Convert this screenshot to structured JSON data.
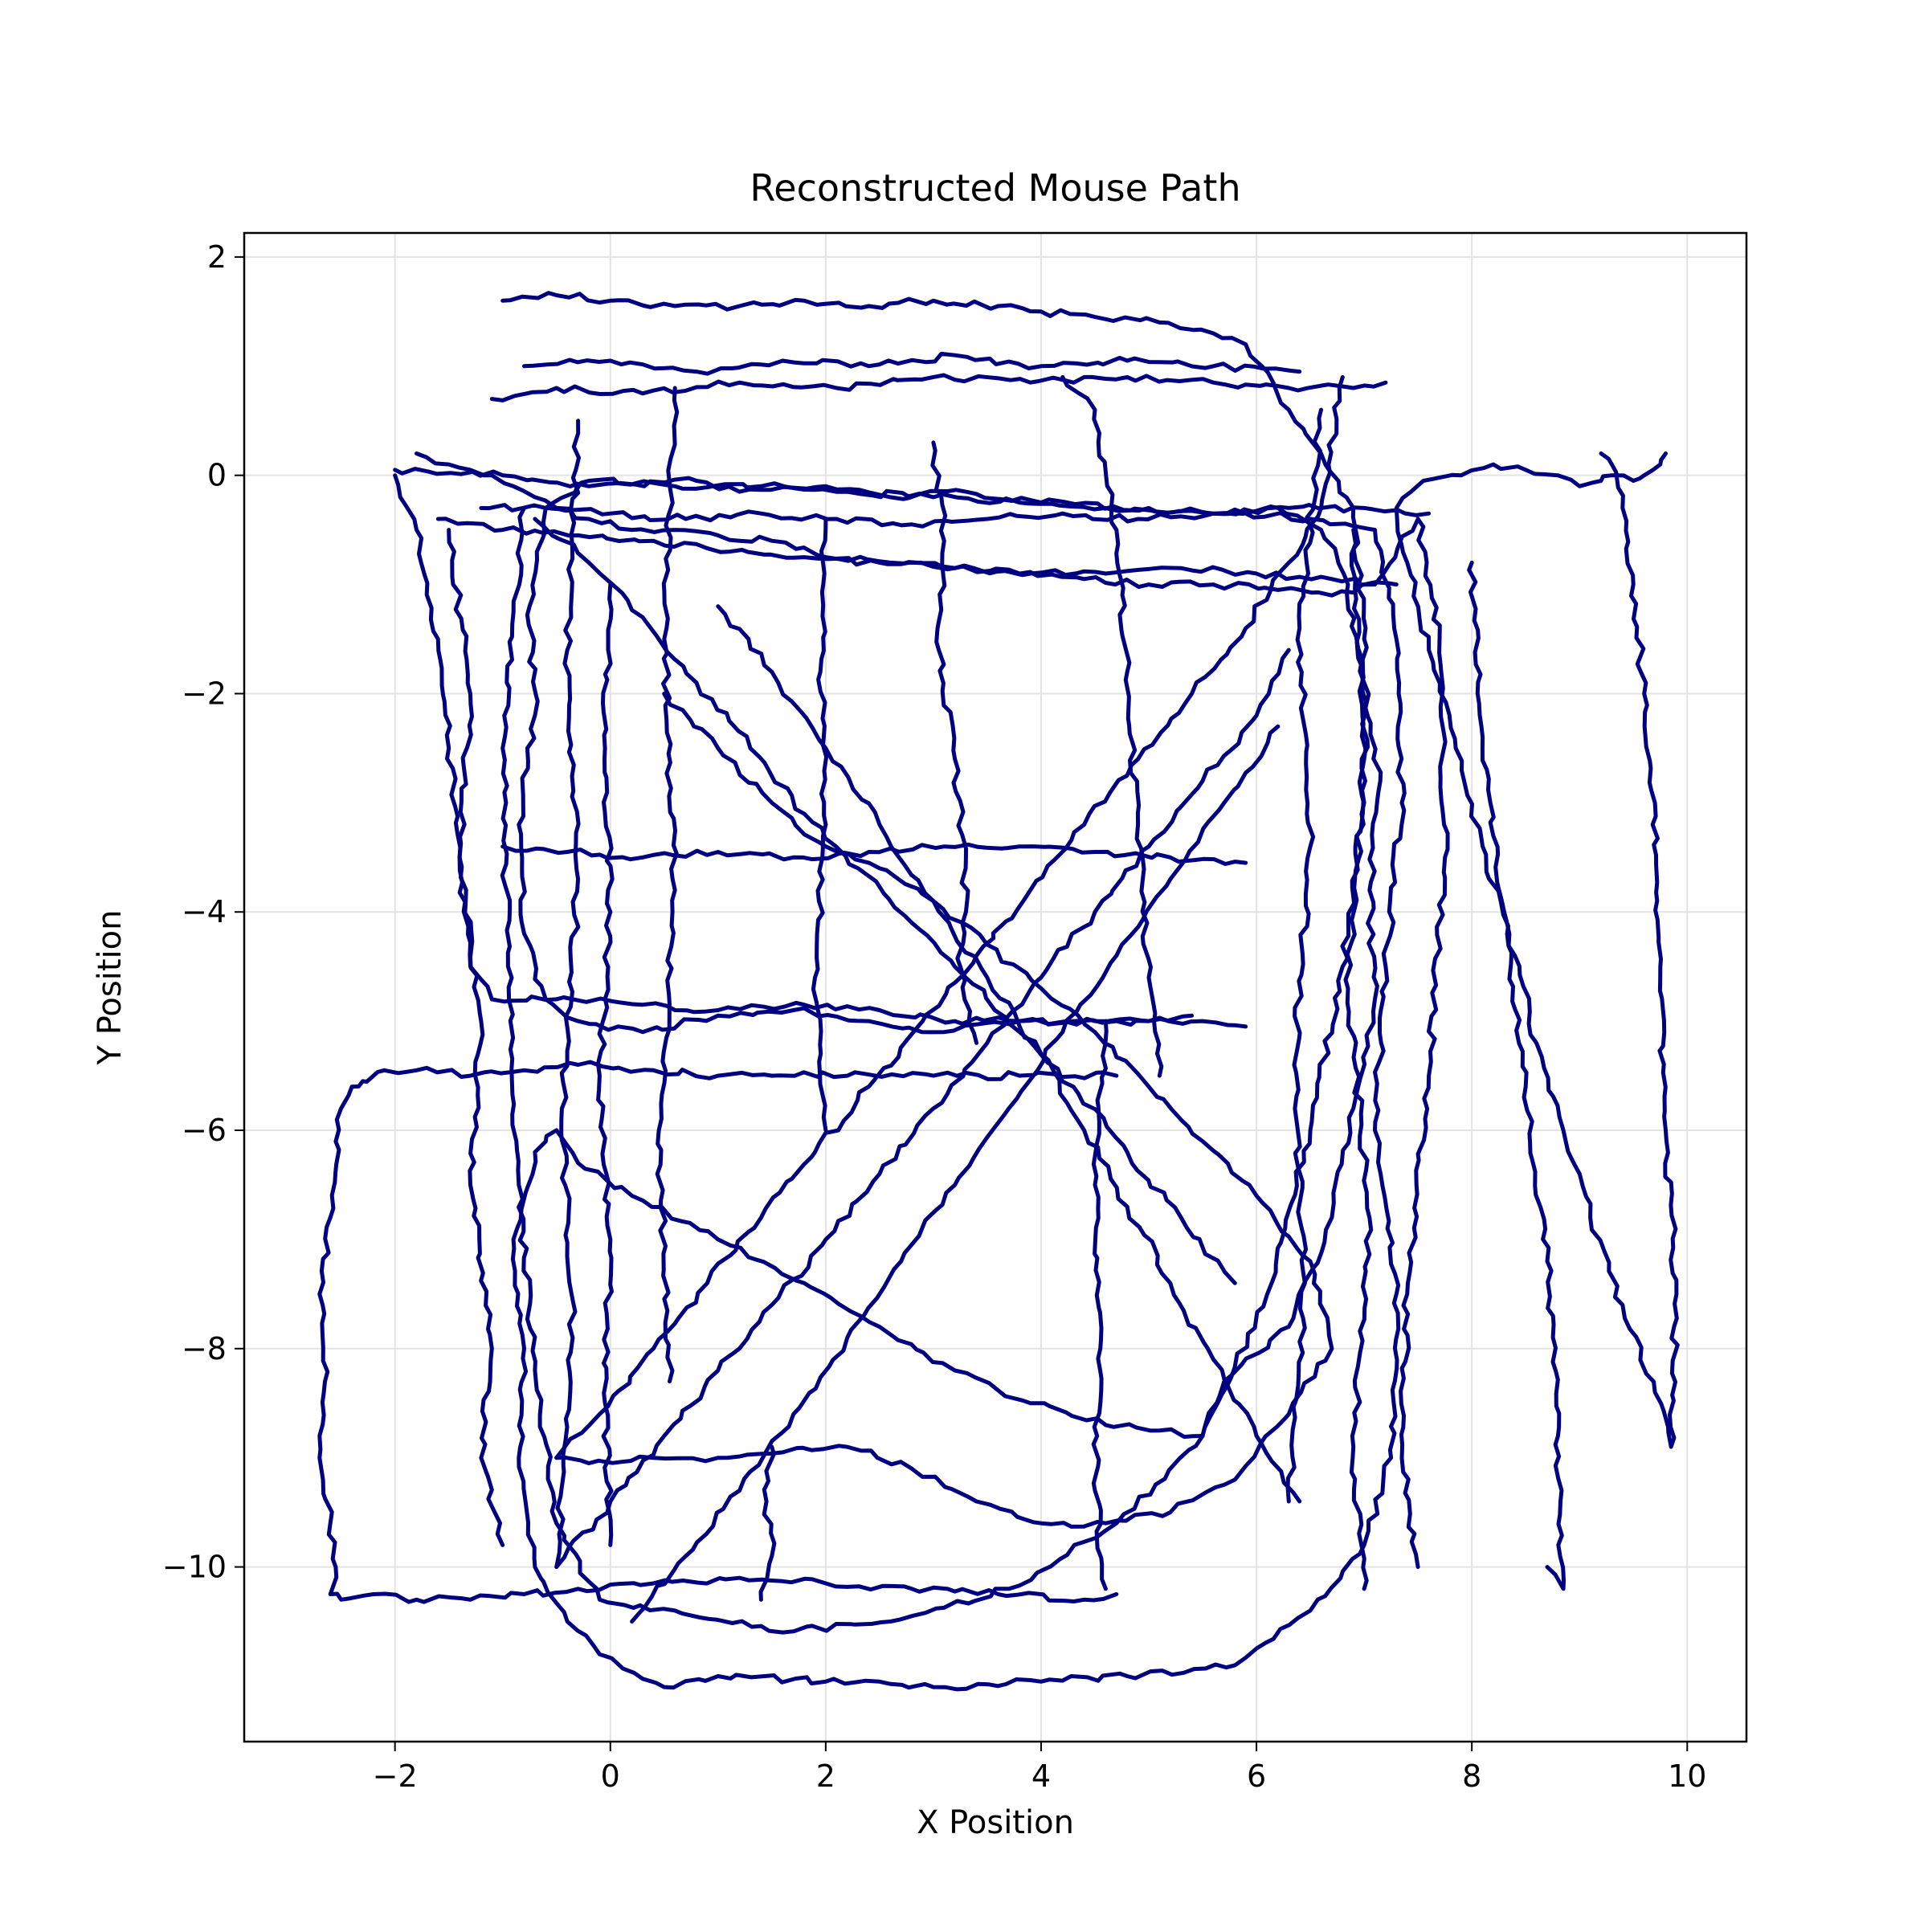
{
  "chart_data": {
    "type": "line",
    "title": "Reconstructed Mouse Path",
    "xlabel": "X Position",
    "ylabel": "Y Position",
    "xlim": [
      -3.4,
      10.55
    ],
    "ylim": [
      -11.6,
      2.22
    ],
    "xticks": [
      -2,
      0,
      2,
      4,
      6,
      8,
      10
    ],
    "yticks": [
      -10,
      -8,
      -6,
      -4,
      -2,
      0,
      2
    ],
    "xtick_labels": [
      "−2",
      "0",
      "2",
      "4",
      "6",
      "8",
      "10"
    ],
    "ytick_labels": [
      "−10",
      "−8",
      "−6",
      "−4",
      "−2",
      "0",
      "2"
    ],
    "grid": true,
    "line_color": "#000080",
    "series": [
      {
        "x": [
          -2.0,
          -1.0,
          -0.2,
          0.8,
          1.2,
          2.0,
          2.6,
          3.3,
          4.0,
          5.0,
          5.9,
          6.5,
          7.1,
          7.3,
          7.35,
          7.2,
          7.1,
          7.3,
          7.25,
          7.0,
          6.5,
          5.8,
          4.8,
          4.0,
          3.0,
          2.0,
          1.0,
          0.5,
          -0.1,
          -0.4,
          -0.7,
          -0.85,
          -0.8,
          -0.9,
          -0.7,
          -0.5,
          -0.3,
          0.2,
          1.0,
          1.8,
          2.5,
          3.2,
          3.9,
          4.6,
          5.1,
          5.5
        ],
        "y": [
          0.05,
          0.0,
          -0.1,
          -0.05,
          -0.15,
          -0.1,
          -0.2,
          -0.15,
          -0.25,
          -0.3,
          -0.35,
          -0.4,
          -0.5,
          -1.5,
          -3.0,
          -4.5,
          -6.0,
          -7.5,
          -9.0,
          -9.8,
          -10.4,
          -10.9,
          -11.0,
          -11.05,
          -11.1,
          -11.05,
          -11.0,
          -11.1,
          -10.8,
          -10.5,
          -10.0,
          -9.0,
          -8.0,
          -7.0,
          -6.2,
          -6.0,
          -6.3,
          -6.6,
          -7.0,
          -7.4,
          -7.8,
          -8.2,
          -8.5,
          -8.7,
          -8.75,
          -8.8
        ]
      },
      {
        "x": [
          5.5,
          5.7,
          6.3,
          6.7,
          6.9,
          7.1,
          7.05,
          7.15,
          7.0,
          6.85,
          6.6,
          6.2,
          5.6,
          4.6,
          3.8,
          3.0,
          2.2,
          1.4,
          0.6,
          -0.2,
          -0.6,
          -0.75,
          -0.7,
          -0.85,
          -0.8,
          -0.6,
          -0.3,
          0.3,
          1.0,
          1.7,
          2.4,
          3.1,
          3.8,
          4.5,
          5.0,
          5.5,
          5.9
        ],
        "y": [
          -8.8,
          -8.3,
          -7.8,
          -6.8,
          -5.8,
          -4.8,
          -3.8,
          -2.8,
          -1.9,
          -1.0,
          -0.5,
          -0.3,
          -0.35,
          -0.3,
          -0.25,
          -0.2,
          -0.15,
          -0.1,
          -0.1,
          -0.05,
          -0.3,
          -1.2,
          -2.2,
          -3.2,
          -4.2,
          -4.8,
          -5.0,
          -5.1,
          -4.95,
          -4.9,
          -5.0,
          -5.1,
          -5.0,
          -5.0,
          -5.0,
          -5.0,
          -5.05
        ]
      },
      {
        "x": [
          -2.0,
          -1.8,
          -1.6,
          -1.5,
          -1.4,
          -1.3,
          -1.1,
          -0.5,
          0.3,
          1.0,
          1.8,
          2.5,
          3.2,
          3.8,
          4.3,
          4.7,
          5.0,
          5.4
        ],
        "y": [
          0.0,
          -0.5,
          -1.5,
          -2.5,
          -3.5,
          -4.5,
          -4.8,
          -4.8,
          -4.85,
          -4.9,
          -4.85,
          -4.9,
          -5.0,
          -5.0,
          -5.0,
          -5.0,
          -5.0,
          -4.95
        ]
      },
      {
        "x": [
          -1.0,
          -0.5,
          0.0,
          0.6,
          1.2,
          1.8,
          2.4,
          3.0,
          3.6,
          4.0,
          4.5,
          5.1,
          5.6,
          5.9,
          6.05,
          6.3,
          6.6,
          6.9,
          7.0,
          7.0,
          6.8,
          6.5,
          6.1,
          5.5,
          4.7,
          3.7,
          2.6,
          1.6,
          0.6,
          -0.1,
          -0.5,
          -0.7,
          -0.85,
          -0.95,
          -1.0,
          -0.8
        ],
        "y": [
          1.6,
          1.65,
          1.6,
          1.55,
          1.55,
          1.6,
          1.55,
          1.6,
          1.55,
          1.5,
          1.45,
          1.4,
          1.3,
          1.2,
          1.0,
          0.6,
          0.2,
          -0.3,
          -1.5,
          -3.0,
          -4.5,
          -6.0,
          -7.5,
          -8.8,
          -9.6,
          -10.2,
          -10.5,
          -10.6,
          -10.4,
          -10.3,
          -9.6,
          -8.2,
          -6.5,
          -4.5,
          -2.5,
          -0.3
        ]
      },
      {
        "x": [
          -1.8,
          -1.5,
          -1.3,
          -1.1,
          -0.9,
          -0.7,
          -0.5,
          -0.2,
          0.2,
          0.6,
          1.0,
          1.5,
          2.0,
          2.6,
          3.2,
          3.8,
          4.4,
          5.0,
          5.6,
          6.2,
          6.7,
          7.1,
          7.5,
          7.7,
          7.75,
          7.6,
          7.4,
          7.35,
          7.5
        ],
        "y": [
          0.2,
          0.1,
          0.05,
          0.0,
          -0.1,
          -0.2,
          -0.3,
          -0.4,
          -0.5,
          -0.5,
          -0.55,
          -0.6,
          -0.75,
          -0.8,
          -0.85,
          -0.9,
          -0.95,
          -1.0,
          -1.0,
          -1.05,
          -1.1,
          -1.0,
          -0.4,
          -1.5,
          -3.5,
          -5.5,
          -7.5,
          -9.0,
          -10.0
        ]
      },
      {
        "x": [
          9.8,
          9.75,
          9.6,
          9.5,
          9.3,
          9.2,
          9.0,
          8.8,
          8.5,
          8.2,
          7.9,
          7.55,
          7.3,
          7.4,
          7.6,
          7.85,
          8.1,
          8.4,
          8.6,
          8.85,
          9.1,
          9.4,
          9.7,
          9.85,
          9.9,
          9.8,
          9.75,
          9.7,
          9.6,
          9.5,
          9.4,
          9.3,
          9.2
        ],
        "y": [
          0.2,
          0.1,
          0.0,
          -0.05,
          0.0,
          -0.05,
          -0.1,
          0.0,
          0.05,
          0.1,
          0.0,
          -0.05,
          -0.3,
          -0.8,
          -1.6,
          -2.5,
          -3.4,
          -4.4,
          -5.2,
          -6.0,
          -6.8,
          -7.6,
          -8.4,
          -8.9,
          -7.5,
          -6.0,
          -4.5,
          -3.0,
          -2.0,
          -1.0,
          -0.3,
          0.1,
          0.2
        ]
      },
      {
        "x": [
          -2.6,
          -2.5,
          -2.4,
          -2.3,
          -2.2,
          -2.1,
          -1.8,
          -1.3,
          -0.8,
          -0.3,
          0.4,
          1.0,
          1.5,
          2.2,
          3.0,
          3.8,
          4.7
        ],
        "y": [
          -6.8,
          -5.8,
          -5.6,
          -5.55,
          -5.5,
          -5.45,
          -5.45,
          -5.5,
          -5.45,
          -5.4,
          -5.45,
          -5.5,
          -5.5,
          -5.5,
          -5.5,
          -5.5,
          -5.5
        ]
      },
      {
        "x": [
          -2.6,
          -2.7,
          -2.65,
          -2.7,
          -2.6,
          -2.55,
          -2.6,
          -2.5,
          -2.2,
          -1.8,
          -1.3,
          -0.8,
          -0.3,
          0.4,
          1.2,
          2.0,
          2.8,
          3.6,
          4.4,
          4.7
        ],
        "y": [
          -6.8,
          -7.5,
          -8.3,
          -9.0,
          -9.6,
          -10.0,
          -10.25,
          -10.3,
          -10.25,
          -10.3,
          -10.3,
          -10.25,
          -10.2,
          -10.15,
          -10.1,
          -10.15,
          -10.2,
          -10.25,
          -10.3,
          -10.25
        ]
      },
      {
        "x": [
          0.5,
          1.0,
          1.5,
          2.0,
          2.5,
          3.0,
          3.5,
          4.0,
          4.5,
          5.0,
          5.5,
          6.0,
          6.5,
          6.7,
          6.3,
          5.8,
          5.2,
          4.6,
          4.0,
          3.4,
          2.8,
          2.2,
          1.6,
          1.0,
          0.4,
          -0.2,
          -0.5
        ],
        "y": [
          -2.0,
          -2.5,
          -3.0,
          -3.4,
          -3.6,
          -3.9,
          -4.3,
          -4.7,
          -5.1,
          -5.6,
          -6.1,
          -6.6,
          -7.2,
          -8.0,
          -8.6,
          -9.2,
          -9.5,
          -9.6,
          -9.6,
          -9.4,
          -9.1,
          -8.9,
          -8.95,
          -9.0,
          -9.0,
          -9.05,
          -9.0
        ]
      },
      {
        "x": [
          -0.5,
          -0.1,
          0.4,
          0.9,
          1.4,
          1.9,
          2.4,
          2.9,
          3.4,
          3.9,
          4.4,
          4.9,
          5.4,
          5.9,
          6.3,
          6.6,
          6.8
        ],
        "y": [
          -9.0,
          -8.6,
          -8.0,
          -7.4,
          -6.8,
          -6.2,
          -5.6,
          -5.0,
          -4.4,
          -3.8,
          -3.2,
          -2.6,
          -2.0,
          -1.4,
          -0.8,
          -0.3,
          0.9
        ]
      },
      {
        "x": [
          -0.5,
          0.0,
          0.5,
          1.0,
          1.5,
          2.0,
          2.5,
          3.0,
          3.5,
          4.0,
          4.5,
          5.0,
          5.5,
          6.0,
          6.3
        ],
        "y": [
          -10.0,
          -9.4,
          -8.8,
          -8.2,
          -7.6,
          -7.0,
          -6.4,
          -5.8,
          -5.2,
          -4.6,
          -4.0,
          -3.4,
          -2.8,
          -2.2,
          -1.6
        ]
      },
      {
        "x": [
          0.2,
          0.7,
          1.2,
          1.7,
          2.2,
          2.7,
          3.2,
          3.7,
          4.2,
          4.7,
          5.2,
          5.7,
          6.2
        ],
        "y": [
          -10.5,
          -9.9,
          -9.3,
          -8.6,
          -7.9,
          -7.2,
          -6.5,
          -5.8,
          -5.1,
          -4.4,
          -3.7,
          -3.0,
          -2.3
        ]
      },
      {
        "x": [
          -0.7,
          -0.2,
          0.3,
          0.8,
          1.3,
          1.8,
          2.3,
          2.8,
          3.3,
          3.8,
          4.3,
          4.8,
          5.3,
          5.8
        ],
        "y": [
          -0.4,
          -0.8,
          -1.3,
          -1.9,
          -2.5,
          -3.1,
          -3.6,
          -4.1,
          -4.6,
          -5.1,
          -5.6,
          -6.2,
          -6.8,
          -7.4
        ]
      },
      {
        "x": [
          1.0,
          1.5,
          2.0,
          2.5,
          3.0,
          3.5,
          4.0,
          4.4,
          4.8,
          5.2,
          5.6,
          6.0,
          6.4
        ],
        "y": [
          -1.2,
          -1.8,
          -2.5,
          -3.2,
          -3.9,
          -4.6,
          -5.3,
          -6.0,
          -6.7,
          -7.4,
          -8.1,
          -8.8,
          -9.4
        ]
      },
      {
        "x": [
          4.2,
          4.5,
          4.7,
          4.8,
          4.9,
          5.0,
          5.1
        ],
        "y": [
          0.9,
          0.6,
          -0.5,
          -1.8,
          -3.2,
          -4.6,
          -5.5
        ]
      },
      {
        "x": [
          3.0,
          3.1,
          3.05,
          3.2,
          3.3,
          3.25,
          3.4
        ],
        "y": [
          0.3,
          -0.6,
          -1.6,
          -2.6,
          -3.6,
          -4.5,
          -5.2
        ]
      },
      {
        "x": [
          2.0,
          1.95,
          2.0,
          1.9,
          2.0
        ],
        "y": [
          -0.4,
          -1.8,
          -3.2,
          -4.6,
          -6.0
        ]
      },
      {
        "x": [
          4.6,
          4.5,
          4.55,
          4.5,
          4.6
        ],
        "y": [
          -5.0,
          -6.5,
          -8.0,
          -9.3,
          -10.2
        ]
      },
      {
        "x": [
          1.5,
          1.45,
          1.5,
          1.4
        ],
        "y": [
          -8.9,
          -9.4,
          -9.9,
          -10.3
        ]
      },
      {
        "x": [
          6.6,
          6.4,
          6.5,
          6.35,
          6.45,
          6.3
        ],
        "y": [
          0.6,
          -1.4,
          -3.4,
          -5.4,
          -7.4,
          -9.4
        ]
      },
      {
        "x": [
          -1.1,
          -0.5,
          0.3,
          1.2,
          2.1,
          3.0,
          3.9,
          4.8,
          5.6,
          6.3,
          6.9,
          7.2
        ],
        "y": [
          0.7,
          0.8,
          0.75,
          0.85,
          0.8,
          0.9,
          0.85,
          0.9,
          0.85,
          0.8,
          0.8,
          0.85
        ]
      },
      {
        "x": [
          -0.8,
          0.0,
          0.8,
          1.6,
          2.4,
          3.2,
          4.0,
          4.8,
          5.6,
          6.4
        ],
        "y": [
          1.0,
          1.05,
          0.95,
          1.05,
          1.0,
          1.1,
          1.0,
          1.05,
          1.0,
          0.95
        ]
      },
      {
        "x": [
          -1.6,
          -1.0,
          -0.3,
          0.4,
          1.1,
          1.8,
          2.5,
          3.2,
          3.9,
          4.6,
          5.3,
          6.0,
          6.7,
          7.3
        ],
        "y": [
          -0.4,
          -0.5,
          -0.55,
          -0.6,
          -0.7,
          -0.75,
          -0.8,
          -0.85,
          -0.9,
          -0.9,
          -0.85,
          -0.9,
          -0.95,
          -1.0
        ]
      },
      {
        "x": [
          -1.2,
          -0.6,
          0.0,
          0.7,
          1.4,
          2.1,
          2.8,
          3.5,
          4.2,
          4.9,
          5.6,
          6.3,
          7.0,
          7.6
        ],
        "y": [
          -0.3,
          -0.3,
          -0.35,
          -0.4,
          -0.35,
          -0.4,
          -0.45,
          -0.4,
          -0.35,
          -0.4,
          -0.35,
          -0.3,
          -0.3,
          -0.35
        ]
      },
      {
        "x": [
          -1.0,
          -0.4,
          0.3,
          1.0,
          1.7,
          2.4,
          3.1,
          3.8,
          4.5,
          5.2,
          5.9
        ],
        "y": [
          -3.4,
          -3.45,
          -3.5,
          -3.45,
          -3.5,
          -3.45,
          -3.4,
          -3.4,
          -3.45,
          -3.5,
          -3.55
        ]
      },
      {
        "x": [
          -1.5,
          -1.3,
          -1.4,
          -1.2,
          -1.3,
          -1.1,
          -1.2,
          -1.0
        ],
        "y": [
          -0.5,
          -2.0,
          -3.5,
          -5.0,
          -6.5,
          -8.0,
          -9.0,
          -9.8
        ]
      },
      {
        "x": [
          0.0,
          -0.05,
          0.0,
          -0.1,
          0.0,
          -0.05,
          0.0
        ],
        "y": [
          -1.0,
          -2.5,
          -4.0,
          -5.5,
          -7.0,
          -8.5,
          -9.8
        ]
      },
      {
        "x": [
          0.6,
          0.5,
          0.6,
          0.45,
          0.55
        ],
        "y": [
          0.8,
          -1.5,
          -3.8,
          -6.0,
          -8.3
        ]
      },
      {
        "x": [
          -0.3,
          -0.4,
          -0.3,
          -0.45,
          -0.35,
          -0.5
        ],
        "y": [
          0.5,
          -1.6,
          -3.7,
          -5.8,
          -7.9,
          -10.0
        ]
      },
      {
        "x": [
          6.9,
          7.0,
          6.85,
          7.05,
          6.9,
          7.0
        ],
        "y": [
          -0.5,
          -2.6,
          -4.7,
          -6.8,
          -8.9,
          -10.2
        ]
      },
      {
        "x": [
          8.0,
          8.1,
          8.3,
          8.5,
          8.7,
          8.8,
          8.85,
          8.7
        ],
        "y": [
          -0.8,
          -2.4,
          -4.0,
          -5.6,
          -7.2,
          -8.8,
          -10.2,
          -10.0
        ]
      }
    ]
  }
}
